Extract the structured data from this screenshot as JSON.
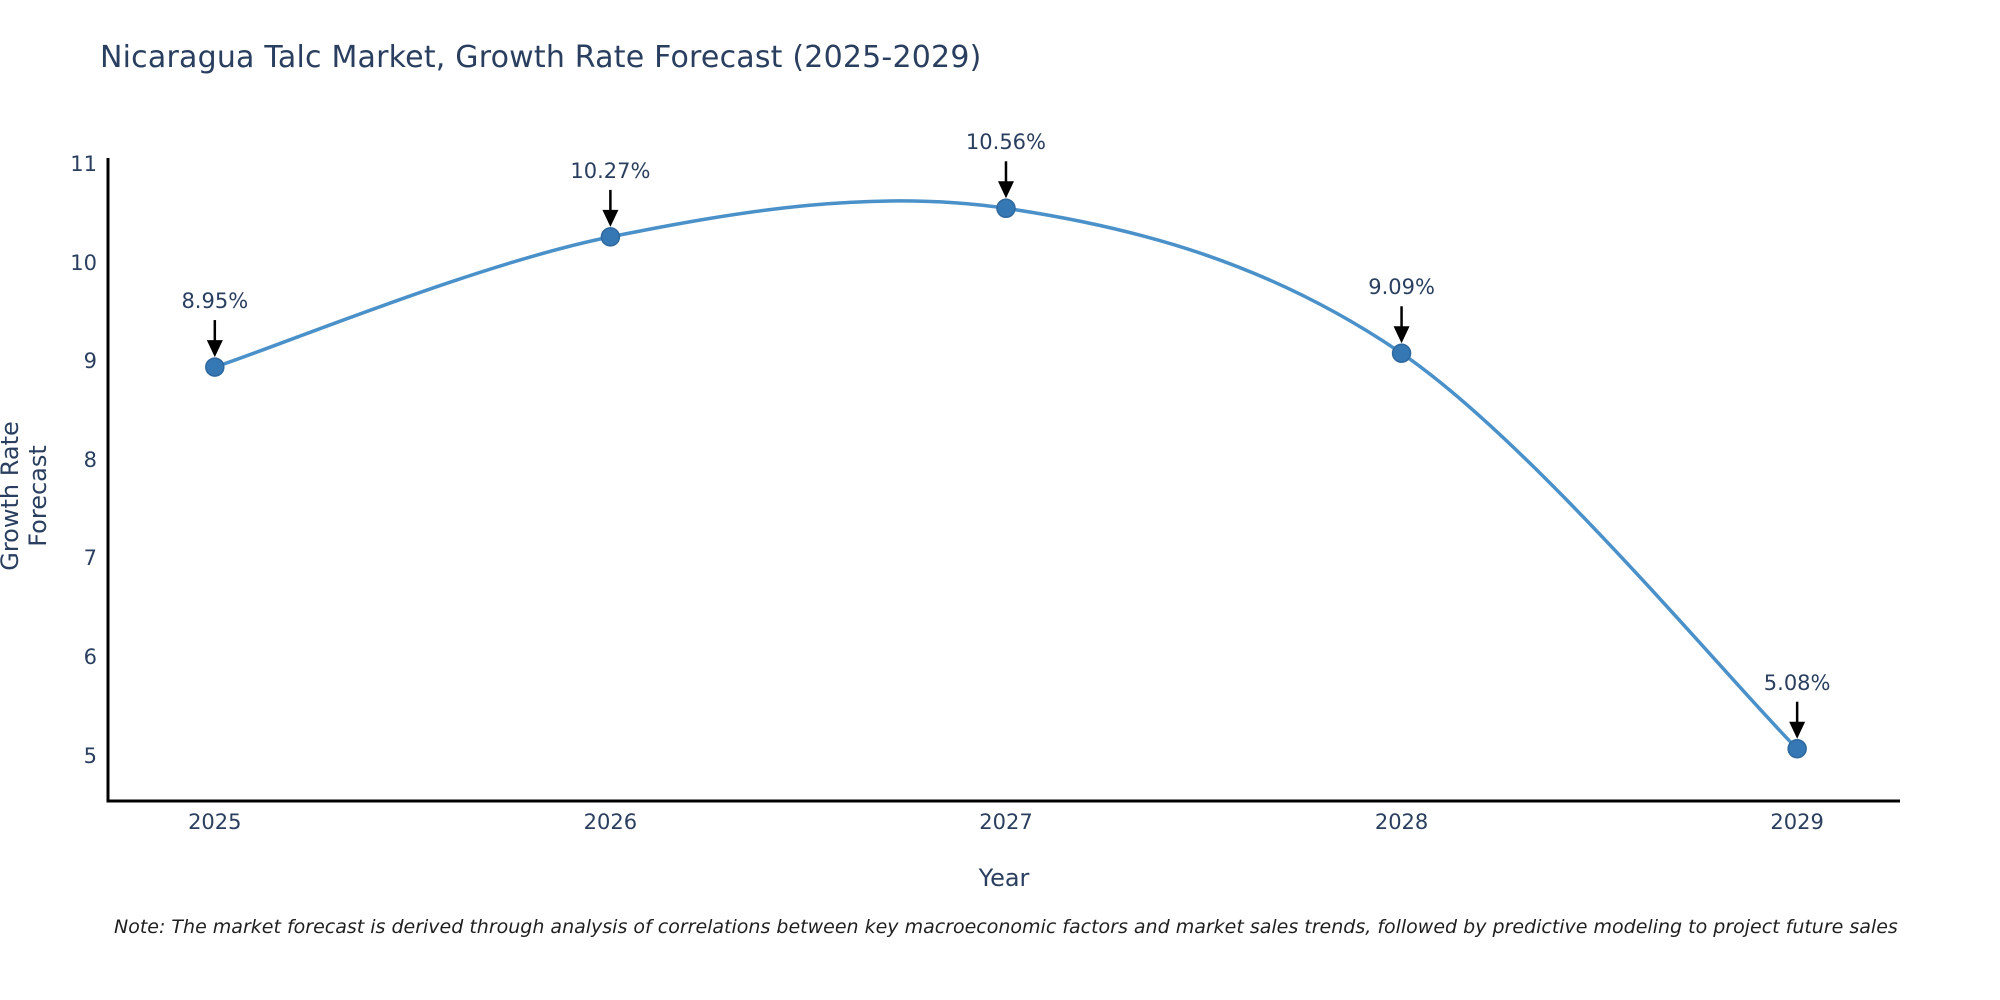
{
  "note": "Note: The market forecast is derived through analysis of correlations between key macroeconomic factors and market sales trends, followed by predictive modeling to project future sales",
  "chart_data": {
    "type": "line",
    "line_shape": "spline",
    "title": "Nicaragua Talc Market, Growth Rate Forecast (2025-2029)",
    "xlabel": "Year",
    "ylabel": "Growth Rate Forecast",
    "x": [
      2025,
      2026,
      2027,
      2028,
      2029
    ],
    "values": [
      8.95,
      10.27,
      10.56,
      9.09,
      5.08
    ],
    "point_labels": [
      "8.95%",
      "10.27%",
      "10.56%",
      "9.09%",
      "5.08%"
    ],
    "x_tick_labels": [
      "2025",
      "2026",
      "2027",
      "2028",
      "2029"
    ],
    "x_tick_values": [
      2025,
      2026,
      2027,
      2028,
      2029
    ],
    "y_tick_labels": [
      "5",
      "6",
      "7",
      "8",
      "9",
      "10",
      "11"
    ],
    "y_tick_values": [
      5,
      6,
      7,
      8,
      9,
      10,
      11
    ],
    "xlim": [
      2024.73,
      2029.26
    ],
    "ylim": [
      4.55,
      11.07
    ],
    "grid": false,
    "legend": "none",
    "annotation_style": "black-arrow-down-to-point",
    "colors": {
      "line": "#4a90c9",
      "marker_fill": "#3578b3",
      "marker_edge": "#2e689e",
      "axis": "#000000",
      "arrow": "#000000",
      "text": "#2a3f5f",
      "background": "#ffffff"
    }
  }
}
